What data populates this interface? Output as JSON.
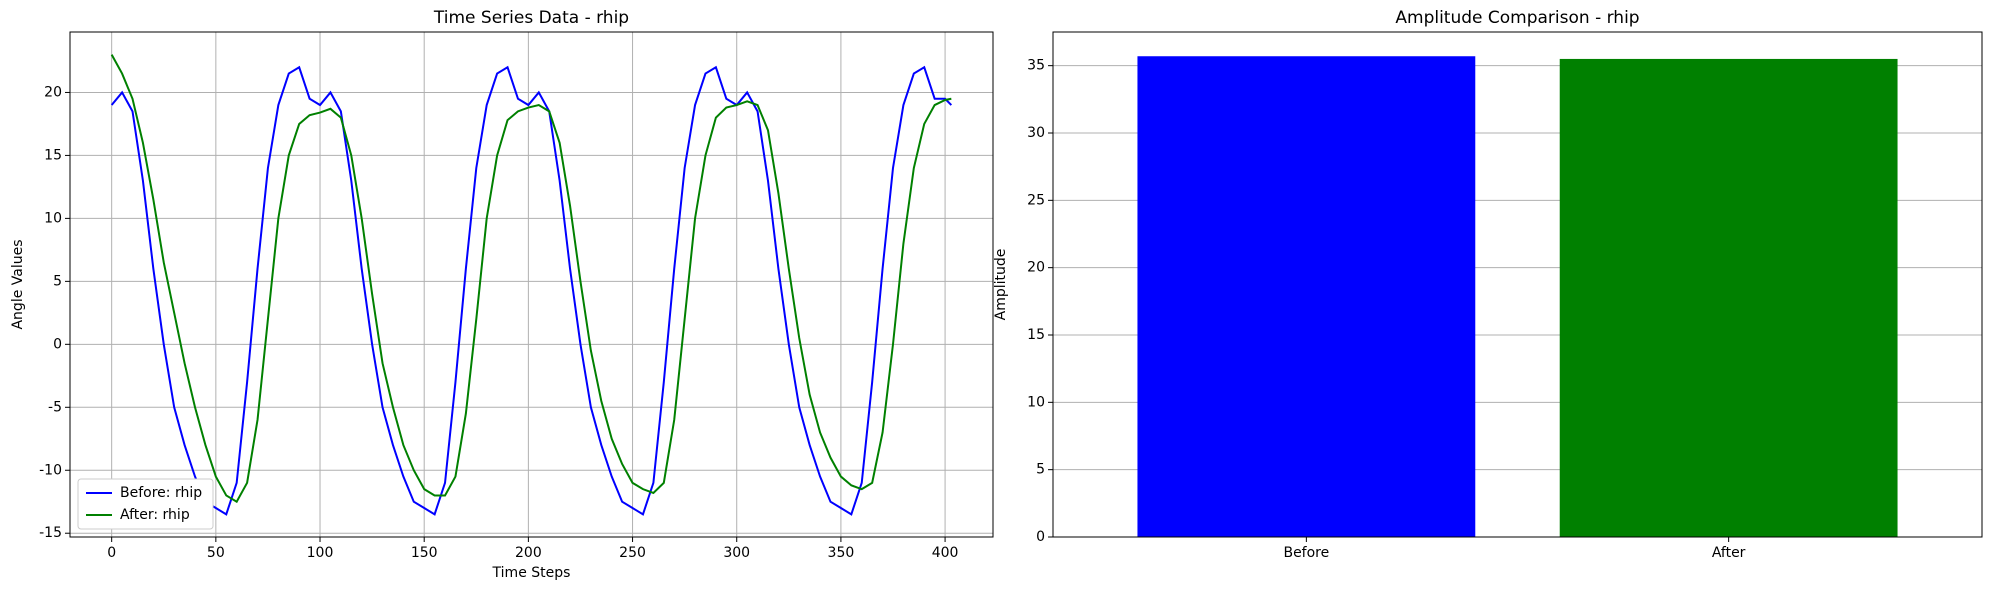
{
  "chart_data": [
    {
      "type": "line",
      "title": "Time Series Data - rhip",
      "xlabel": "Time Steps",
      "ylabel": "Angle Values",
      "x": [
        0,
        5,
        10,
        15,
        20,
        25,
        30,
        35,
        40,
        45,
        50,
        55,
        60,
        65,
        70,
        75,
        80,
        85,
        90,
        95,
        100,
        105,
        110,
        115,
        120,
        125,
        130,
        135,
        140,
        145,
        150,
        155,
        160,
        165,
        170,
        175,
        180,
        185,
        190,
        195,
        200,
        205,
        210,
        215,
        220,
        225,
        230,
        235,
        240,
        245,
        250,
        255,
        260,
        265,
        270,
        275,
        280,
        285,
        290,
        295,
        300,
        305,
        310,
        315,
        320,
        325,
        330,
        335,
        340,
        345,
        350,
        355,
        360,
        365,
        370,
        375,
        380,
        385,
        390,
        395,
        400,
        403
      ],
      "series": [
        {
          "name": "Before: rhip",
          "color": "#0000ff",
          "values": [
            19,
            20,
            18.5,
            13,
            6,
            0,
            -5,
            -8,
            -10.5,
            -12.5,
            -13,
            -13.5,
            -11,
            -3,
            6,
            14,
            19,
            21.5,
            22,
            19.5,
            19,
            20,
            18.5,
            13,
            6,
            0,
            -5,
            -8,
            -10.5,
            -12.5,
            -13,
            -13.5,
            -11,
            -3,
            6,
            14,
            19,
            21.5,
            22,
            19.5,
            19,
            20,
            18.5,
            13,
            6,
            0,
            -5,
            -8,
            -10.5,
            -12.5,
            -13,
            -13.5,
            -11,
            -3,
            6,
            14,
            19,
            21.5,
            22,
            19.5,
            19,
            20,
            18.5,
            13,
            6,
            0,
            -5,
            -8,
            -10.5,
            -12.5,
            -13,
            -13.5,
            -11,
            -3,
            6,
            14,
            19,
            21.5,
            22,
            19.5,
            19.5,
            19
          ]
        },
        {
          "name": "After: rhip",
          "color": "#008000",
          "values": [
            23,
            21.5,
            19.5,
            16,
            11.5,
            6.5,
            2.5,
            -1.5,
            -5,
            -8,
            -10.5,
            -12,
            -12.5,
            -11,
            -6,
            2,
            10,
            15,
            17.5,
            18.2,
            18.4,
            18.7,
            18,
            15,
            10,
            4,
            -1.5,
            -5,
            -8,
            -10,
            -11.5,
            -12,
            -12,
            -10.5,
            -5.5,
            2,
            10,
            15,
            17.8,
            18.5,
            18.8,
            19,
            18.5,
            16,
            11,
            5,
            -0.5,
            -4.5,
            -7.5,
            -9.5,
            -11,
            -11.5,
            -11.8,
            -11,
            -6,
            2,
            10,
            15,
            18,
            18.8,
            19,
            19.3,
            19,
            17,
            12,
            6,
            0.5,
            -4,
            -7,
            -9,
            -10.5,
            -11.2,
            -11.5,
            -11,
            -7,
            0,
            8,
            14,
            17.5,
            19,
            19.4,
            19.5
          ]
        }
      ],
      "xlim": [
        -20,
        423
      ],
      "xticks": [
        0,
        50,
        100,
        150,
        200,
        250,
        300,
        350,
        400
      ],
      "ylim": [
        -15.3,
        24.8
      ],
      "yticks": [
        -15,
        -10,
        -5,
        0,
        5,
        10,
        15,
        20
      ],
      "grid": true,
      "legend": "lower left"
    },
    {
      "type": "bar",
      "title": "Amplitude Comparison - rhip",
      "ylabel": "Amplitude",
      "categories": [
        "Before",
        "After"
      ],
      "values": [
        35.7,
        35.5
      ],
      "colors": [
        "#0000ff",
        "#008000"
      ],
      "ylim": [
        0,
        37.5
      ],
      "yticks": [
        0,
        5,
        10,
        15,
        20,
        25,
        30,
        35
      ],
      "grid": true
    }
  ]
}
